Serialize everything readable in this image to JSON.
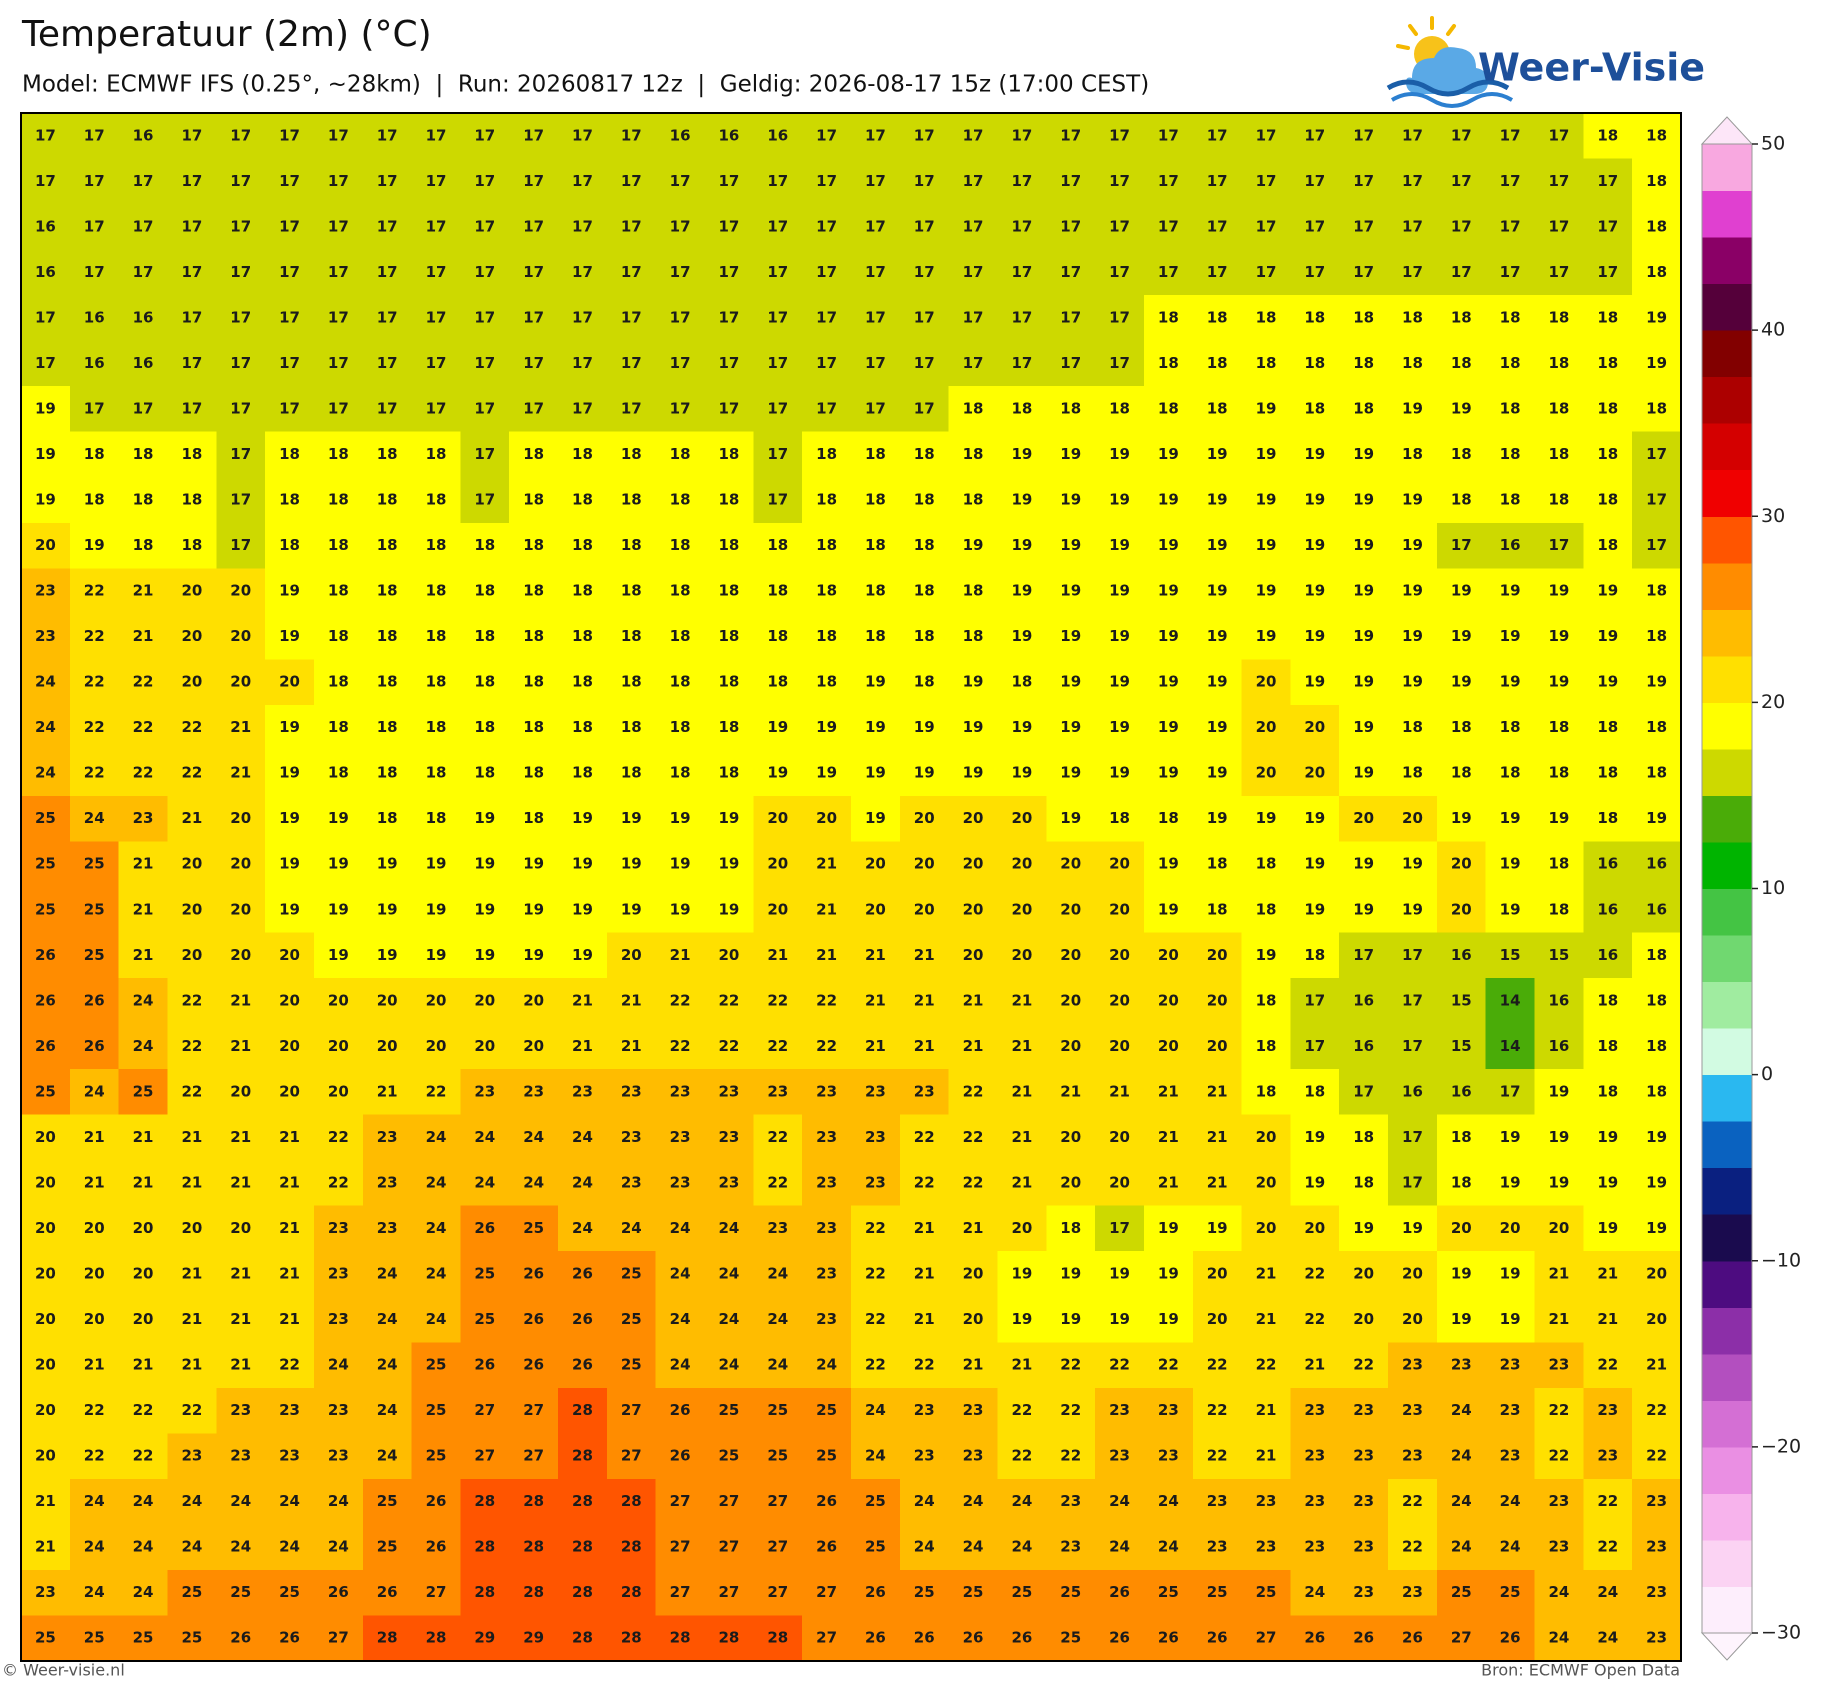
{
  "header": {
    "title": "Temperatuur (2m) (°C)",
    "subtitle": "Model: ECMWF IFS (0.25°, ~28km)  |  Run: 20260817 12z  |  Geldig: 2026-08-17 15z (17:00 CEST)"
  },
  "logo": "Weer-Visie",
  "map": {
    "rows": [
      [
        17,
        17,
        16,
        17,
        17,
        17,
        17,
        17,
        17,
        17,
        17,
        17,
        17,
        16,
        16,
        16,
        17,
        17,
        17,
        17,
        17,
        17,
        17,
        17,
        17,
        17,
        17,
        17,
        17,
        17,
        17,
        17,
        18,
        18
      ],
      [
        17,
        17,
        17,
        17,
        17,
        17,
        17,
        17,
        17,
        17,
        17,
        17,
        17,
        17,
        17,
        17,
        17,
        17,
        17,
        17,
        17,
        17,
        17,
        17,
        17,
        17,
        17,
        17,
        17,
        17,
        17,
        17,
        17,
        18
      ],
      [
        16,
        17,
        17,
        17,
        17,
        17,
        17,
        17,
        17,
        17,
        17,
        17,
        17,
        17,
        17,
        17,
        17,
        17,
        17,
        17,
        17,
        17,
        17,
        17,
        17,
        17,
        17,
        17,
        17,
        17,
        17,
        17,
        17,
        18
      ],
      [
        16,
        17,
        17,
        17,
        17,
        17,
        17,
        17,
        17,
        17,
        17,
        17,
        17,
        17,
        17,
        17,
        17,
        17,
        17,
        17,
        17,
        17,
        17,
        17,
        17,
        17,
        17,
        17,
        17,
        17,
        17,
        17,
        17,
        18
      ],
      [
        17,
        16,
        16,
        17,
        17,
        17,
        17,
        17,
        17,
        17,
        17,
        17,
        17,
        17,
        17,
        17,
        17,
        17,
        17,
        17,
        17,
        17,
        17,
        18,
        18,
        18,
        18,
        18,
        18,
        18,
        18,
        18,
        18,
        19
      ],
      [
        17,
        16,
        16,
        17,
        17,
        17,
        17,
        17,
        17,
        17,
        17,
        17,
        17,
        17,
        17,
        17,
        17,
        17,
        17,
        17,
        17,
        17,
        17,
        18,
        18,
        18,
        18,
        18,
        18,
        18,
        18,
        18,
        18,
        19
      ],
      [
        19,
        17,
        17,
        17,
        17,
        17,
        17,
        17,
        17,
        17,
        17,
        17,
        17,
        17,
        17,
        17,
        17,
        17,
        17,
        18,
        18,
        18,
        18,
        18,
        18,
        19,
        18,
        18,
        19,
        19,
        18,
        18,
        18,
        18
      ],
      [
        19,
        18,
        18,
        18,
        17,
        18,
        18,
        18,
        18,
        17,
        18,
        18,
        18,
        18,
        18,
        17,
        18,
        18,
        18,
        18,
        19,
        19,
        19,
        19,
        19,
        19,
        19,
        19,
        18,
        18,
        18,
        18,
        18,
        17
      ],
      [
        19,
        18,
        18,
        18,
        17,
        18,
        18,
        18,
        18,
        17,
        18,
        18,
        18,
        18,
        18,
        17,
        18,
        18,
        18,
        18,
        19,
        19,
        19,
        19,
        19,
        19,
        19,
        19,
        19,
        18,
        18,
        18,
        18,
        17
      ],
      [
        20,
        19,
        18,
        18,
        17,
        18,
        18,
        18,
        18,
        18,
        18,
        18,
        18,
        18,
        18,
        18,
        18,
        18,
        18,
        19,
        19,
        19,
        19,
        19,
        19,
        19,
        19,
        19,
        19,
        17,
        16,
        17,
        18,
        17
      ],
      [
        23,
        22,
        21,
        20,
        20,
        19,
        18,
        18,
        18,
        18,
        18,
        18,
        18,
        18,
        18,
        18,
        18,
        18,
        18,
        18,
        19,
        19,
        19,
        19,
        19,
        19,
        19,
        19,
        19,
        19,
        19,
        19,
        19,
        18
      ],
      [
        23,
        22,
        21,
        20,
        20,
        19,
        18,
        18,
        18,
        18,
        18,
        18,
        18,
        18,
        18,
        18,
        18,
        18,
        18,
        18,
        19,
        19,
        19,
        19,
        19,
        19,
        19,
        19,
        19,
        19,
        19,
        19,
        19,
        18
      ],
      [
        24,
        22,
        22,
        20,
        20,
        20,
        18,
        18,
        18,
        18,
        18,
        18,
        18,
        18,
        18,
        18,
        18,
        19,
        18,
        19,
        18,
        19,
        19,
        19,
        19,
        20,
        19,
        19,
        19,
        19,
        19,
        19,
        19,
        19
      ],
      [
        24,
        22,
        22,
        22,
        21,
        19,
        18,
        18,
        18,
        18,
        18,
        18,
        18,
        18,
        18,
        19,
        19,
        19,
        19,
        19,
        19,
        19,
        19,
        19,
        19,
        20,
        20,
        19,
        18,
        18,
        18,
        18,
        18,
        18
      ],
      [
        24,
        22,
        22,
        22,
        21,
        19,
        18,
        18,
        18,
        18,
        18,
        18,
        18,
        18,
        18,
        19,
        19,
        19,
        19,
        19,
        19,
        19,
        19,
        19,
        19,
        20,
        20,
        19,
        18,
        18,
        18,
        18,
        18,
        18
      ],
      [
        25,
        24,
        23,
        21,
        20,
        19,
        19,
        18,
        18,
        19,
        18,
        19,
        19,
        19,
        19,
        20,
        20,
        19,
        20,
        20,
        20,
        19,
        18,
        18,
        19,
        19,
        19,
        20,
        20,
        19,
        19,
        19,
        18,
        19
      ],
      [
        25,
        25,
        21,
        20,
        20,
        19,
        19,
        19,
        19,
        19,
        19,
        19,
        19,
        19,
        19,
        20,
        21,
        20,
        20,
        20,
        20,
        20,
        20,
        19,
        18,
        18,
        19,
        19,
        19,
        20,
        19,
        18,
        16,
        16
      ],
      [
        25,
        25,
        21,
        20,
        20,
        19,
        19,
        19,
        19,
        19,
        19,
        19,
        19,
        19,
        19,
        20,
        21,
        20,
        20,
        20,
        20,
        20,
        20,
        19,
        18,
        18,
        19,
        19,
        19,
        20,
        19,
        18,
        16,
        16
      ],
      [
        26,
        25,
        21,
        20,
        20,
        20,
        19,
        19,
        19,
        19,
        19,
        19,
        20,
        21,
        20,
        21,
        21,
        21,
        21,
        20,
        20,
        20,
        20,
        20,
        20,
        19,
        18,
        17,
        17,
        16,
        15,
        15,
        16,
        18
      ],
      [
        26,
        26,
        24,
        22,
        21,
        20,
        20,
        20,
        20,
        20,
        20,
        21,
        21,
        22,
        22,
        22,
        22,
        21,
        21,
        21,
        21,
        20,
        20,
        20,
        20,
        18,
        17,
        16,
        17,
        15,
        14,
        16,
        18,
        18
      ],
      [
        26,
        26,
        24,
        22,
        21,
        20,
        20,
        20,
        20,
        20,
        20,
        21,
        21,
        22,
        22,
        22,
        22,
        21,
        21,
        21,
        21,
        20,
        20,
        20,
        20,
        18,
        17,
        16,
        17,
        15,
        14,
        16,
        18,
        18
      ],
      [
        25,
        24,
        25,
        22,
        20,
        20,
        20,
        21,
        22,
        23,
        23,
        23,
        23,
        23,
        23,
        23,
        23,
        23,
        23,
        22,
        21,
        21,
        21,
        21,
        21,
        18,
        18,
        17,
        16,
        16,
        17,
        19,
        18,
        18
      ],
      [
        20,
        21,
        21,
        21,
        21,
        21,
        22,
        23,
        24,
        24,
        24,
        24,
        23,
        23,
        23,
        22,
        23,
        23,
        22,
        22,
        21,
        20,
        20,
        21,
        21,
        20,
        19,
        18,
        17,
        18,
        19,
        19,
        19,
        19
      ],
      [
        20,
        21,
        21,
        21,
        21,
        21,
        22,
        23,
        24,
        24,
        24,
        24,
        23,
        23,
        23,
        22,
        23,
        23,
        22,
        22,
        21,
        20,
        20,
        21,
        21,
        20,
        19,
        18,
        17,
        18,
        19,
        19,
        19,
        19
      ],
      [
        20,
        20,
        20,
        20,
        20,
        21,
        23,
        23,
        24,
        26,
        25,
        24,
        24,
        24,
        24,
        23,
        23,
        22,
        21,
        21,
        20,
        18,
        17,
        19,
        19,
        20,
        20,
        19,
        19,
        20,
        20,
        20,
        19,
        19
      ],
      [
        20,
        20,
        20,
        21,
        21,
        21,
        23,
        24,
        24,
        25,
        26,
        26,
        25,
        24,
        24,
        24,
        23,
        22,
        21,
        20,
        19,
        19,
        19,
        19,
        20,
        21,
        22,
        20,
        20,
        19,
        19,
        21,
        21,
        20
      ],
      [
        20,
        20,
        20,
        21,
        21,
        21,
        23,
        24,
        24,
        25,
        26,
        26,
        25,
        24,
        24,
        24,
        23,
        22,
        21,
        20,
        19,
        19,
        19,
        19,
        20,
        21,
        22,
        20,
        20,
        19,
        19,
        21,
        21,
        20
      ],
      [
        20,
        21,
        21,
        21,
        21,
        22,
        24,
        24,
        25,
        26,
        26,
        26,
        25,
        24,
        24,
        24,
        24,
        22,
        22,
        21,
        21,
        22,
        22,
        22,
        22,
        22,
        21,
        22,
        23,
        23,
        23,
        23,
        22,
        21
      ],
      [
        20,
        22,
        22,
        22,
        23,
        23,
        23,
        24,
        25,
        27,
        27,
        28,
        27,
        26,
        25,
        25,
        25,
        24,
        23,
        23,
        22,
        22,
        23,
        23,
        22,
        21,
        23,
        23,
        23,
        24,
        23,
        22,
        23,
        22
      ],
      [
        20,
        22,
        22,
        23,
        23,
        23,
        23,
        24,
        25,
        27,
        27,
        28,
        27,
        26,
        25,
        25,
        25,
        24,
        23,
        23,
        22,
        22,
        23,
        23,
        22,
        21,
        23,
        23,
        23,
        24,
        23,
        22,
        23,
        22
      ],
      [
        21,
        24,
        24,
        24,
        24,
        24,
        24,
        25,
        26,
        28,
        28,
        28,
        28,
        27,
        27,
        27,
        26,
        25,
        24,
        24,
        24,
        23,
        24,
        24,
        23,
        23,
        23,
        23,
        22,
        24,
        24,
        23,
        22,
        23
      ],
      [
        21,
        24,
        24,
        24,
        24,
        24,
        24,
        25,
        26,
        28,
        28,
        28,
        28,
        27,
        27,
        27,
        26,
        25,
        24,
        24,
        24,
        23,
        24,
        24,
        23,
        23,
        23,
        23,
        22,
        24,
        24,
        23,
        22,
        23
      ],
      [
        23,
        24,
        24,
        25,
        25,
        25,
        26,
        26,
        27,
        28,
        28,
        28,
        28,
        27,
        27,
        27,
        27,
        26,
        25,
        25,
        25,
        25,
        26,
        25,
        25,
        25,
        24,
        23,
        23,
        25,
        25,
        24,
        24,
        23
      ],
      [
        25,
        25,
        25,
        25,
        26,
        26,
        27,
        28,
        28,
        29,
        29,
        28,
        28,
        28,
        28,
        28,
        27,
        26,
        26,
        26,
        26,
        25,
        26,
        26,
        26,
        27,
        26,
        26,
        26,
        27,
        26,
        24,
        24,
        23
      ]
    ]
  },
  "colorbar": {
    "lim": [
      -30,
      50
    ],
    "ticks": [
      50,
      40,
      30,
      20,
      10,
      0,
      {
        "value": -10,
        "label": "−10"
      },
      {
        "value": -20,
        "label": "−20"
      },
      {
        "value": -30,
        "label": "−30"
      }
    ],
    "colors": [
      "#fdeefc",
      "#fbd3f3",
      "#f7b3ec",
      "#ea8fe3",
      "#d46fd4",
      "#b34fbf",
      "#8c2fa8",
      "#4d0c80",
      "#1a0b4e",
      "#0a2080",
      "#0a62c0",
      "#2ab8f0",
      "#d2fbe2",
      "#a0eca0",
      "#70d870",
      "#44c444",
      "#00b400",
      "#4aac08",
      "#cdd900",
      "#ffff00",
      "#ffe000",
      "#ffbc00",
      "#ff8c00",
      "#ff5500",
      "#f00000",
      "#d40000",
      "#ac0000",
      "#820000",
      "#55003a",
      "#8a0066",
      "#e040d0",
      "#f8a8e0"
    ]
  },
  "footer": {
    "left": "© Weer-visie.nl",
    "right": "Bron: ECMWF Open Data"
  }
}
